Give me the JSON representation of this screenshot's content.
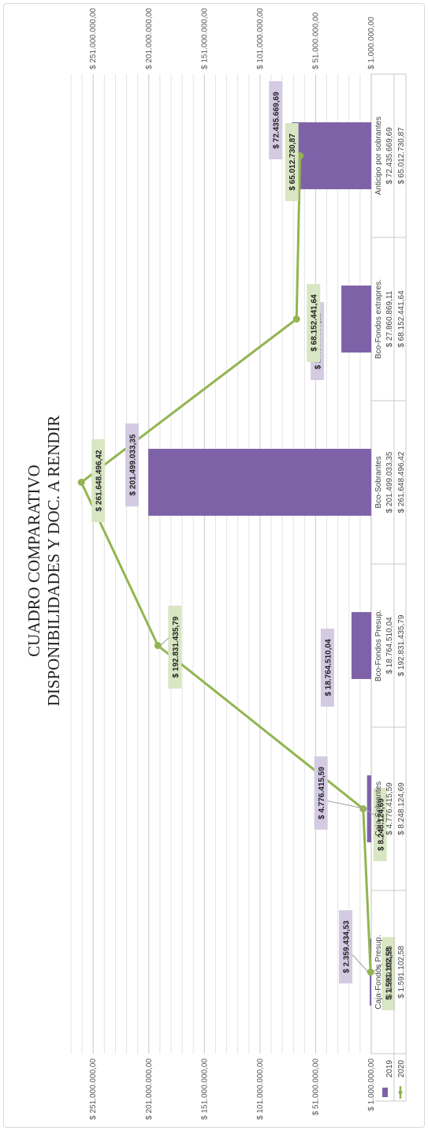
{
  "chart_data": {
    "type": "bar",
    "title": "CUADRO COMPARATIVO",
    "subtitle": "DISPONIBILIDADES Y DOC. A RENDIR",
    "categories": [
      "Caja-Fondos Presup.",
      "Caja-Sobrantes",
      "Bco-Fondos Presup.",
      "Bco-Sobrantes",
      "Bco-Fondos extrapres.",
      "Anticipo por sobrantes"
    ],
    "series": [
      {
        "name": "2019",
        "kind": "bar",
        "color": "#7e62a8",
        "values": [
          2359434.53,
          4776415.59,
          18764510.04,
          201499033.35,
          27860869.11,
          72435669.69
        ],
        "labels": [
          "$ 2.359.434,53",
          "$ 4.776.415,59",
          "$ 18.764.510,04",
          "$ 201.499.033,35",
          "$ 27.860.869,11",
          "$ 72.435.669,69"
        ]
      },
      {
        "name": "2020",
        "kind": "line",
        "color": "#92b550",
        "values": [
          1591102.58,
          8248124.69,
          192831435.79,
          261648496.42,
          68152441.64,
          65012730.87
        ],
        "labels": [
          "$ 1.591.102,58",
          "$ 8.248.124,69",
          "$ 192.831.435,79",
          "$ 261.648.496,42",
          "$ 68.152.441,64",
          "$ 65.012.730,87"
        ]
      }
    ],
    "yaxis_ticks": [
      "$ 1.000.000,00",
      "$ 51.000.000,00",
      "$ 101.000.000,00",
      "$ 151.000.000,00",
      "$ 201.000.000,00",
      "$ 251.000.000,00"
    ],
    "ytick_values": [
      1000000,
      51000000,
      101000000,
      151000000,
      201000000,
      251000000
    ],
    "ylim": [
      1000000,
      271000000
    ],
    "grid": true,
    "legend": "data-table",
    "data_table": true,
    "label_colors": {
      "2019": "#d4cbe3",
      "2020": "#d9e6c3"
    }
  }
}
